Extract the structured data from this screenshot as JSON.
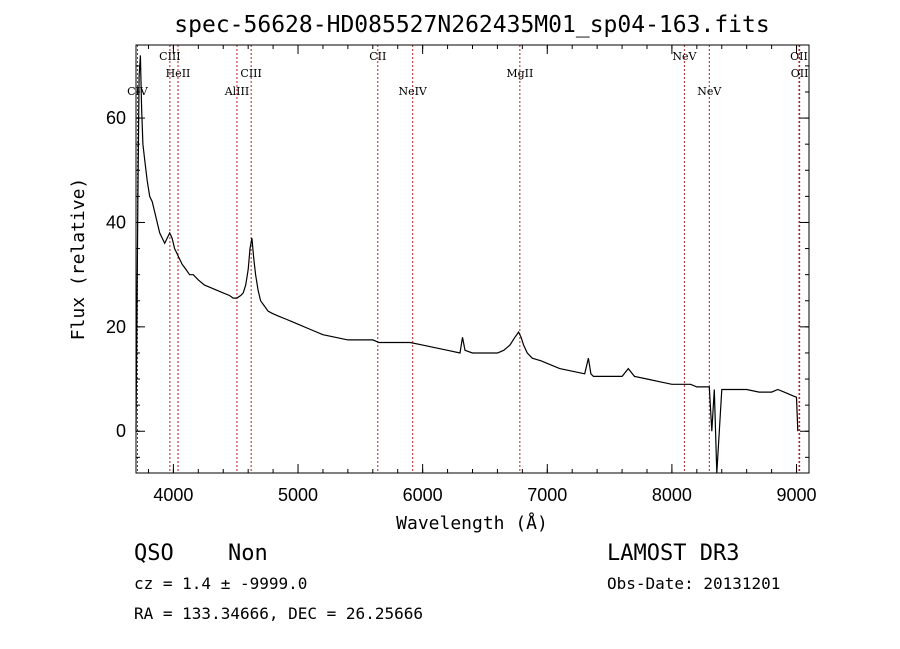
{
  "chart_data": {
    "type": "line",
    "title": "spec-56628-HD085527N262435M01_sp04-163.fits",
    "xlabel": "Wavelength (Å)",
    "ylabel": "Flux (relative)",
    "xlim": [
      3700,
      9100
    ],
    "ylim": [
      -8,
      74
    ],
    "x_ticks": [
      4000,
      5000,
      6000,
      7000,
      8000,
      9000
    ],
    "y_ticks": [
      0,
      20,
      40,
      60
    ],
    "grid": false,
    "series": [
      {
        "color": "#000000",
        "x": [
          3700,
          3715,
          3725,
          3735,
          3745,
          3755,
          3770,
          3790,
          3810,
          3830,
          3850,
          3870,
          3890,
          3910,
          3930,
          3950,
          3970,
          3990,
          4010,
          4030,
          4050,
          4070,
          4100,
          4130,
          4160,
          4200,
          4250,
          4300,
          4350,
          4400,
          4450,
          4480,
          4510,
          4540,
          4560,
          4580,
          4600,
          4615,
          4630,
          4645,
          4660,
          4680,
          4700,
          4730,
          4760,
          4800,
          4850,
          4900,
          4950,
          5000,
          5100,
          5200,
          5300,
          5400,
          5500,
          5600,
          5650,
          5700,
          5800,
          5900,
          6000,
          6100,
          6200,
          6300,
          6320,
          6340,
          6400,
          6500,
          6600,
          6650,
          6700,
          6740,
          6770,
          6790,
          6810,
          6840,
          6880,
          6950,
          7000,
          7100,
          7200,
          7300,
          7330,
          7350,
          7370,
          7400,
          7500,
          7600,
          7650,
          7700,
          7800,
          7900,
          8000,
          8100,
          8150,
          8200,
          8250,
          8300,
          8320,
          8340,
          8360,
          8400,
          8500,
          8600,
          8700,
          8800,
          8850,
          8900,
          8950,
          9000,
          9010
        ],
        "y": [
          0,
          45,
          68,
          72,
          62,
          55,
          52,
          48,
          45,
          44,
          42,
          40,
          38,
          37,
          36,
          37,
          38,
          37,
          35,
          34,
          33,
          32,
          31,
          30,
          30,
          29,
          28,
          27.5,
          27,
          26.5,
          26,
          25.5,
          25.5,
          26,
          26.5,
          28,
          31,
          35,
          37,
          33,
          30,
          27,
          25,
          24,
          23,
          22.5,
          22,
          21.5,
          21,
          20.5,
          19.5,
          18.5,
          18,
          17.5,
          17.5,
          17.5,
          17,
          17,
          17,
          17,
          16.5,
          16,
          15.5,
          15,
          18,
          15.5,
          15,
          15,
          15,
          15.5,
          16.5,
          18,
          19,
          18,
          16.5,
          15,
          14,
          13.5,
          13,
          12,
          11.5,
          11,
          14,
          11,
          10.5,
          10.5,
          10.5,
          10.5,
          12,
          10.5,
          10,
          9.5,
          9,
          9,
          9,
          8.5,
          8.5,
          8.5,
          0,
          8,
          -8,
          8,
          8,
          8,
          7.5,
          7.5,
          8,
          7.5,
          7,
          6.5,
          0
        ]
      }
    ],
    "lines": [
      {
        "name": "CIV",
        "x": 3712,
        "row": 3
      },
      {
        "name": "CIII",
        "x": 3972,
        "row": 1
      },
      {
        "name": "HeII",
        "x": 4037,
        "row": 2
      },
      {
        "name": "AlIII",
        "x": 4510,
        "row": 3
      },
      {
        "name": "CIII",
        "x": 4624,
        "row": 2
      },
      {
        "name": "CII",
        "x": 5640,
        "row": 1
      },
      {
        "name": "NeIV",
        "x": 5920,
        "row": 3
      },
      {
        "name": "MgII",
        "x": 6780,
        "row": 2
      },
      {
        "name": "NeV",
        "x": 8100,
        "row": 1
      },
      {
        "name": "NeV",
        "x": 8300,
        "row": 3
      },
      {
        "name": "OII",
        "x": 9020,
        "row": 1
      },
      {
        "name": "OII",
        "x": 9025,
        "row": 2
      }
    ]
  },
  "info": {
    "class": "QSO",
    "subclass": "Non",
    "cz": "cz = 1.4 ± -9999.0",
    "radec": "RA = 133.34666, DEC =  26.25666",
    "survey": "LAMOST DR3",
    "obsdate": "Obs-Date: 20131201"
  },
  "colors": {
    "spectrum": "#000000",
    "line_marker": "#b22222"
  }
}
